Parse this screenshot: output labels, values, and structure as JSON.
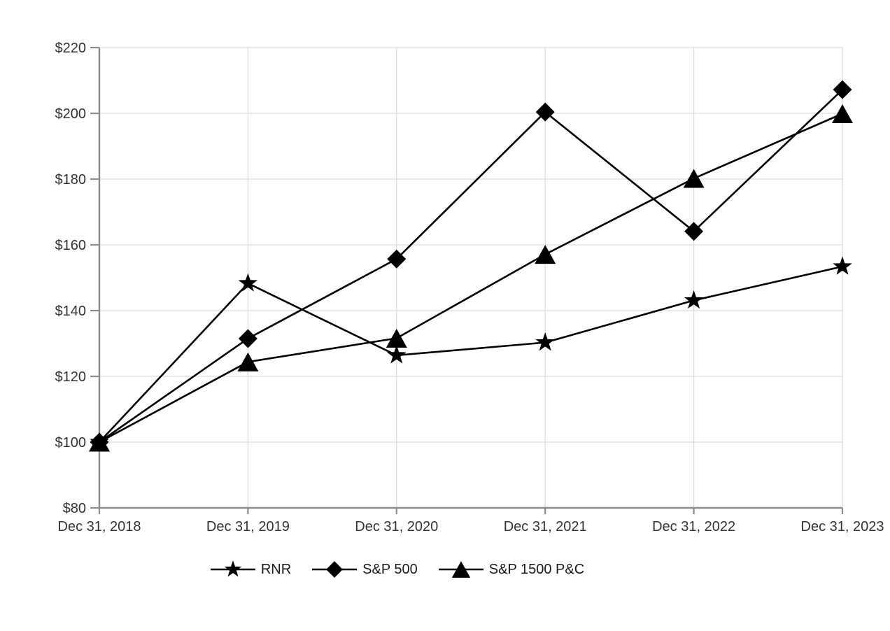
{
  "chart_data": {
    "type": "line",
    "title": "",
    "xlabel": "",
    "ylabel": "",
    "categories": [
      "Dec 31, 2018",
      "Dec 31, 2019",
      "Dec 31, 2020",
      "Dec 31, 2021",
      "Dec 31, 2022",
      "Dec 31, 2023"
    ],
    "series": [
      {
        "name": "RNR",
        "marker": "star",
        "color": "#000000",
        "values": [
          100.0,
          148.3,
          126.4,
          130.3,
          143.1,
          153.4
        ]
      },
      {
        "name": "S&P 500",
        "marker": "diamond",
        "color": "#000000",
        "values": [
          100.0,
          131.5,
          155.7,
          200.4,
          164.1,
          207.2
        ]
      },
      {
        "name": "S&P 1500 P&C",
        "marker": "triangle",
        "color": "#000000",
        "values": [
          100.0,
          124.4,
          131.6,
          157.1,
          180.2,
          199.9
        ]
      }
    ],
    "ylim": [
      80,
      220
    ],
    "y_tick_step": 20,
    "y_tick_labels": [
      "$80",
      "$100",
      "$120",
      "$140",
      "$160",
      "$180",
      "$200",
      "$220"
    ],
    "grid": true,
    "legend_position": "bottom",
    "colors": {
      "background": "#ffffff",
      "gridline": "#dcdcdc",
      "axis": "#8c8c8c",
      "tick_label": "#333333",
      "series": "#000000"
    }
  }
}
